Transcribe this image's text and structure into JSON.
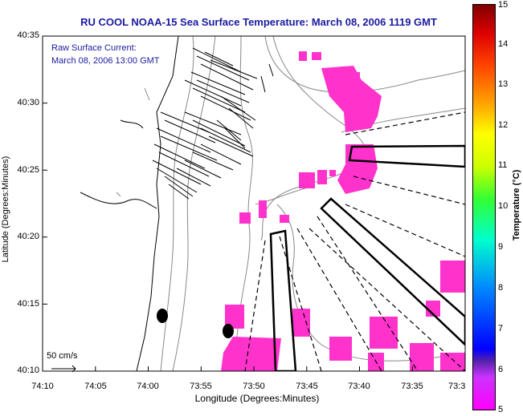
{
  "title": "RU COOL  NOAA-15  Sea Surface Temperature:  March 08, 2006 1119 GMT",
  "annotation": {
    "line1": "Raw Surface Current:",
    "line2": "March 08, 2006 13:00 GMT"
  },
  "scale_label": "50 cm/s",
  "colors": {
    "title": "#1a1aa0",
    "sst_patch": "#ff33cc",
    "land": "#ffffff",
    "contour": "#888888"
  },
  "chart_data": {
    "type": "map",
    "xlabel": "Longitude (Degrees:Minutes)",
    "ylabel": "Latitude (Degrees:Minutes)",
    "x_ticks": [
      "74:10",
      "74:05",
      "74:00",
      "73:55",
      "73:50",
      "73:45",
      "73:40",
      "73:35",
      "73:3"
    ],
    "y_ticks": [
      "40:35",
      "40:30",
      "40:25",
      "40:20",
      "40:15",
      "40:10"
    ],
    "colorbar": {
      "label": "Temperature (°C)",
      "range": [
        5,
        15
      ],
      "ticks": [
        "15",
        "14",
        "13",
        "12",
        "11",
        "10",
        "9",
        "8",
        "7",
        "6",
        "5"
      ]
    }
  }
}
